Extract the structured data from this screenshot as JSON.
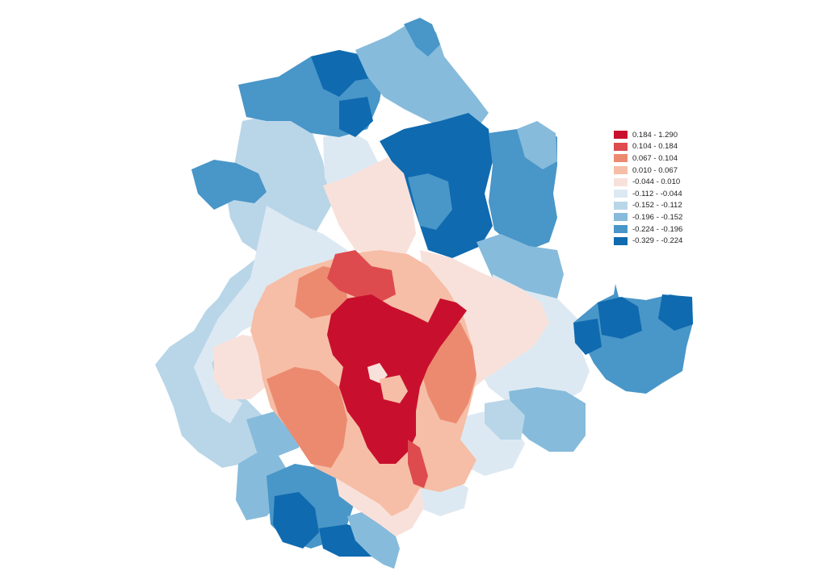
{
  "legend": {
    "classes": [
      {
        "label": "0.184 - 1.290",
        "color": "#c8102e"
      },
      {
        "label": "0.104 - 0.184",
        "color": "#de4b4e"
      },
      {
        "label": "0.067 - 0.104",
        "color": "#ec8a70"
      },
      {
        "label": "0.010 - 0.067",
        "color": "#f6bea6"
      },
      {
        "label": "-0.044 - 0.010",
        "color": "#f9e1db"
      },
      {
        "label": "-0.112 - -0.044",
        "color": "#dde9f2"
      },
      {
        "label": "-0.152 - -0.112",
        "color": "#b9d6e8"
      },
      {
        "label": "-0.196 - -0.152",
        "color": "#86bbdb"
      },
      {
        "label": "-0.224 - -0.196",
        "color": "#4996c8"
      },
      {
        "label": "-0.329 - -0.224",
        "color": "#0f6aaf"
      }
    ]
  }
}
